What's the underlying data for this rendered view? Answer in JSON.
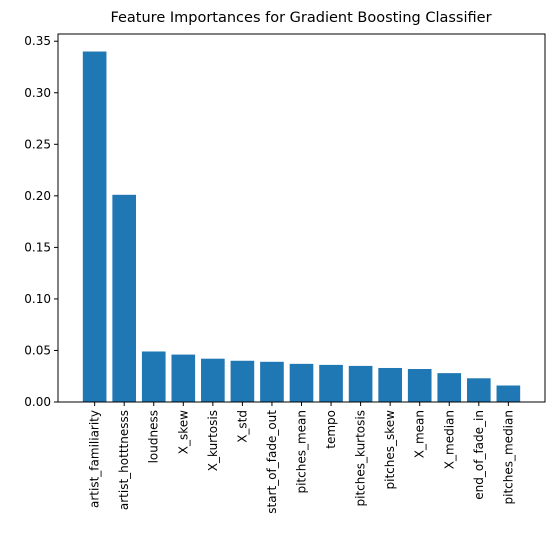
{
  "chart_data": {
    "type": "bar",
    "title": "Feature Importances for Gradient Boosting Classifier",
    "xlabel": "",
    "ylabel": "",
    "categories": [
      "artist_familiarity",
      "artist_hotttnesss",
      "loudness",
      "X_skew",
      "X_kurtosis",
      "X_std",
      "start_of_fade_out",
      "pitches_mean",
      "tempo",
      "pitches_kurtosis",
      "pitches_skew",
      "X_mean",
      "X_median",
      "end_of_fade_in",
      "pitches_median"
    ],
    "values": [
      0.34,
      0.201,
      0.049,
      0.046,
      0.042,
      0.04,
      0.039,
      0.037,
      0.036,
      0.035,
      0.033,
      0.032,
      0.028,
      0.023,
      0.016
    ],
    "ylim": [
      0,
      0.357
    ],
    "yticks": [
      0.0,
      0.05,
      0.1,
      0.15,
      0.2,
      0.25,
      0.3,
      0.35
    ],
    "ytick_labels": [
      "0.00",
      "0.05",
      "0.10",
      "0.15",
      "0.20",
      "0.25",
      "0.30",
      "0.35"
    ],
    "bar_color": "#1f77b4",
    "grid": false,
    "legend": "none"
  }
}
